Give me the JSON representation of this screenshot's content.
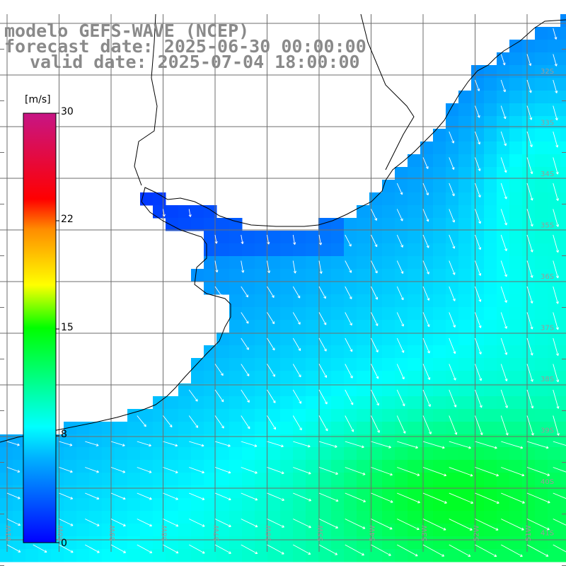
{
  "title": {
    "model": "modelo GEFS-WAVE (NCEP)",
    "forecast": "forecast date: 2025-06-30 00:00:00",
    "valid": "valid date: 2025-07-04 18:00:00"
  },
  "colorbar": {
    "unit": "[m/s]",
    "ticks": [
      "30",
      "22",
      "15",
      "8",
      "0"
    ],
    "range": [
      0,
      30
    ],
    "stops": [
      "#0000ff",
      "#00b4ff",
      "#00ffff",
      "#00ff00",
      "#ffff00",
      "#ff8c00",
      "#ff0000",
      "#c71585"
    ]
  },
  "map": {
    "lat_labels": [
      "32S",
      "33S",
      "34S",
      "35S",
      "36S",
      "37S",
      "38S",
      "39S",
      "40S",
      "41S"
    ],
    "lon_labels": [
      "61W",
      "60W",
      "59W",
      "58W",
      "57W",
      "56W",
      "55W",
      "54W",
      "53W",
      "52W",
      "51W"
    ],
    "variable": "wind speed and direction",
    "colors": {
      "land": "#ffffff",
      "grid": "#6e6e6e",
      "coast": "#000000",
      "arrows": "#ffffff",
      "labels": "#9a9a9a"
    }
  }
}
